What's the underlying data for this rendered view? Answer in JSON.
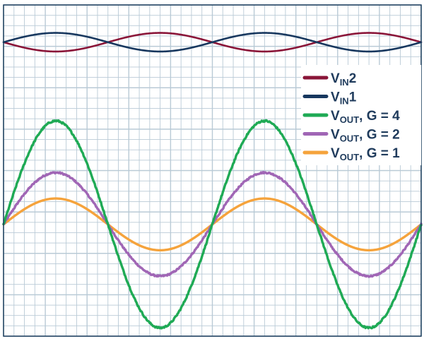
{
  "chart_data": {
    "type": "line",
    "grid": true,
    "x_divisions": 40,
    "y_divisions": 32,
    "legend_position": "right",
    "series": [
      {
        "name_main": "V",
        "name_sub": "IN",
        "name_rest": "2",
        "color": "#8a1538",
        "cycles": 2,
        "phase_deg": 180,
        "amplitude_div": 0.9,
        "offset_div": 28.4,
        "noise": false,
        "stroke": 2.6
      },
      {
        "name_main": "V",
        "name_sub": "IN",
        "name_rest": "1",
        "color": "#17375e",
        "cycles": 2,
        "phase_deg": 0,
        "amplitude_div": 0.9,
        "offset_div": 28.4,
        "noise": false,
        "stroke": 2.6
      },
      {
        "name_main": "V",
        "name_sub": "OUT",
        "name_rest": ", G = 4",
        "color": "#1faa55",
        "cycles": 2,
        "phase_deg": 0,
        "amplitude_div": 10,
        "offset_div": 10.8,
        "noise": true,
        "stroke": 3.4
      },
      {
        "name_main": "V",
        "name_sub": "OUT",
        "name_rest": ", G = 2",
        "color": "#a066b5",
        "cycles": 2,
        "phase_deg": 0,
        "amplitude_div": 5,
        "offset_div": 10.8,
        "noise": true,
        "stroke": 3.4
      },
      {
        "name_main": "V",
        "name_sub": "OUT",
        "name_rest": ", G = 1",
        "color": "#f5a33c",
        "cycles": 2,
        "phase_deg": 0,
        "amplitude_div": 2.5,
        "offset_div": 10.8,
        "noise": false,
        "stroke": 3.4
      }
    ],
    "legend_order": [
      0,
      1,
      2,
      3,
      4
    ]
  },
  "colors": {
    "grid": "#b9cad6",
    "frame": "#1b3c5c",
    "background": "#ffffff"
  }
}
